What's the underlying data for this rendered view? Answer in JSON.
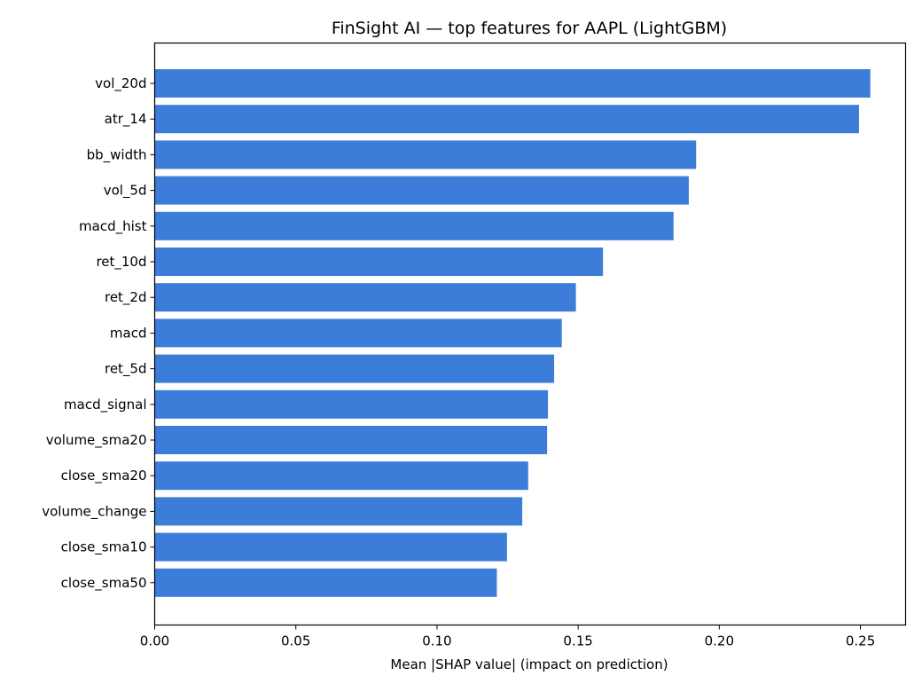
{
  "chart_data": {
    "type": "bar",
    "orientation": "horizontal",
    "title": "FinSight AI — top features for AAPL (LightGBM)",
    "xlabel": "Mean |SHAP value| (impact on prediction)",
    "ylabel": "",
    "xlim": [
      0,
      0.266
    ],
    "x_ticks": [
      0.0,
      0.05,
      0.1,
      0.15,
      0.2,
      0.25
    ],
    "x_tick_labels": [
      "0.00",
      "0.05",
      "0.10",
      "0.15",
      "0.20",
      "0.25"
    ],
    "grid": false,
    "bar_color": "#3b7dd8",
    "categories": [
      "vol_20d",
      "atr_14",
      "bb_width",
      "vol_5d",
      "macd_hist",
      "ret_10d",
      "ret_2d",
      "macd",
      "ret_5d",
      "macd_signal",
      "volume_sma20",
      "close_sma20",
      "volume_change",
      "close_sma10",
      "close_sma50"
    ],
    "values": [
      0.2535,
      0.2495,
      0.1918,
      0.1892,
      0.1838,
      0.1588,
      0.1492,
      0.1442,
      0.1415,
      0.1393,
      0.139,
      0.1323,
      0.1302,
      0.1248,
      0.1212
    ]
  }
}
